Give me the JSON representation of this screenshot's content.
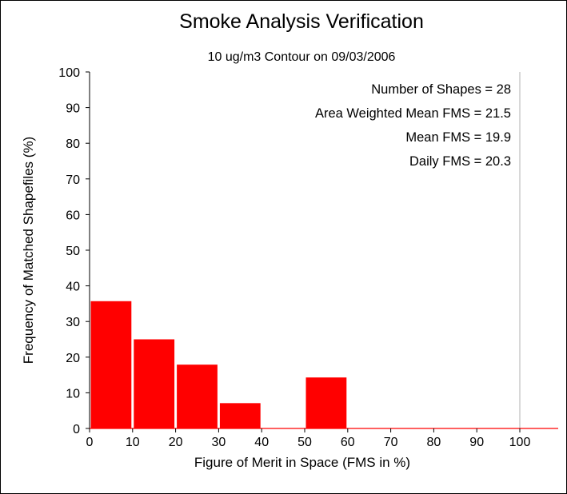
{
  "chart_data": {
    "type": "bar",
    "title": "Smoke Analysis Verification",
    "subtitle": "10 ug/m3 Contour on 09/03/2006",
    "xlabel": "Figure of Merit in Space (FMS in %)",
    "ylabel": "Frequency of Matched Shapefiles (%)",
    "xlim": [
      0,
      100
    ],
    "ylim": [
      0,
      100
    ],
    "x_ticks": [
      0,
      10,
      20,
      30,
      40,
      50,
      60,
      70,
      80,
      90,
      100
    ],
    "y_ticks": [
      0,
      10,
      20,
      30,
      40,
      50,
      60,
      70,
      80,
      90,
      100
    ],
    "bins": [
      {
        "from": 0,
        "to": 10,
        "value": 35.7
      },
      {
        "from": 10,
        "to": 20,
        "value": 25.0
      },
      {
        "from": 20,
        "to": 30,
        "value": 17.9
      },
      {
        "from": 30,
        "to": 40,
        "value": 7.1
      },
      {
        "from": 40,
        "to": 50,
        "value": 0
      },
      {
        "from": 50,
        "to": 60,
        "value": 14.3
      },
      {
        "from": 60,
        "to": 70,
        "value": 0
      },
      {
        "from": 70,
        "to": 80,
        "value": 0
      },
      {
        "from": 80,
        "to": 90,
        "value": 0
      },
      {
        "from": 90,
        "to": 100,
        "value": 0
      }
    ],
    "bar_color": "#ff0000",
    "grid": false,
    "annotations": [
      "Number of Shapes = 28",
      "Area Weighted Mean FMS = 21.5",
      "Mean FMS = 19.9",
      "Daily FMS = 20.3"
    ]
  }
}
